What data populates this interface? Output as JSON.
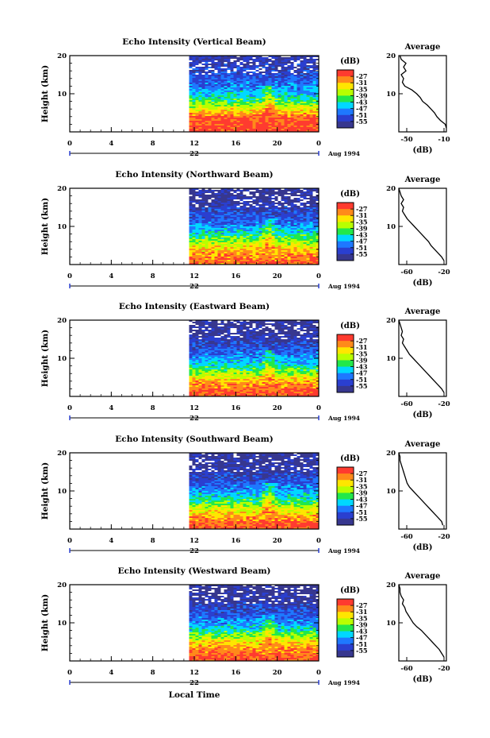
{
  "figure": {
    "xlabel": "Local Time",
    "time_ticks": [
      "0",
      "4",
      "8",
      "12",
      "16",
      "20",
      "0"
    ],
    "date_tick": "22",
    "date_label": "Aug 1994",
    "height_ticks": [
      "20",
      "10"
    ],
    "ylabel": "Height (km)",
    "colorbar_unit": "(dB)",
    "colorbar_ticks": [
      "-27",
      "-31",
      "-35",
      "-39",
      "-43",
      "-47",
      "-51",
      "-55"
    ],
    "colorbar_colors": [
      "#ff3b2f",
      "#ff8a1a",
      "#ffe600",
      "#b8ff00",
      "#22e84a",
      "#00d8ff",
      "#1e78ff",
      "#2a3fd0",
      "#37378f"
    ],
    "avg_title": "Average",
    "avg_xlabel": "(dB)"
  },
  "panels": [
    {
      "title": "Echo Intensity (Vertical Beam)",
      "avg_ticks": [
        "-50",
        "-10"
      ]
    },
    {
      "title": "Echo Intensity (Northward Beam)",
      "avg_ticks": [
        "-60",
        "-20"
      ]
    },
    {
      "title": "Echo Intensity (Eastward Beam)",
      "avg_ticks": [
        "-60",
        "-20"
      ]
    },
    {
      "title": "Echo Intensity (Southward Beam)",
      "avg_ticks": [
        "-60",
        "-20"
      ]
    },
    {
      "title": "Echo Intensity (Westward Beam)",
      "avg_ticks": [
        "-60",
        "-20"
      ]
    }
  ],
  "chart_data": [
    {
      "type": "heatmap",
      "title": "Echo Intensity (Vertical Beam)",
      "xlabel": "Local Time",
      "ylabel": "Height (km)",
      "colorbar_label": "(dB)",
      "x_range_hours": [
        0,
        24
      ],
      "data_start_hour": 11.5,
      "ylim_km": [
        0,
        20
      ],
      "colorbar_range": [
        -55,
        -27
      ],
      "typical_intensity_by_height": {
        "km": [
          1,
          2,
          4,
          6,
          8,
          10,
          12,
          14,
          16,
          18,
          20
        ],
        "dB": [
          -27,
          -27,
          -29,
          -35,
          -41,
          -45,
          -48,
          -50,
          -52,
          -53,
          -54
        ]
      }
    },
    {
      "type": "line",
      "title": "Average",
      "xlabel": "(dB)",
      "xlim": [
        -50,
        -10
      ],
      "ylim": [
        0,
        20
      ],
      "height_km": [
        1,
        2,
        3,
        4,
        5,
        6,
        7,
        8,
        9,
        10,
        11,
        12,
        13,
        14,
        15,
        16,
        17,
        18,
        19,
        20
      ],
      "values_dB": [
        -10,
        -11,
        -15,
        -18,
        -20,
        -23,
        -26,
        -30,
        -32,
        -35,
        -39,
        -45,
        -47,
        -46,
        -48,
        -44,
        -46,
        -44,
        -48,
        -49
      ]
    },
    {
      "type": "heatmap",
      "title": "Echo Intensity (Northward Beam)",
      "xlabel": "Local Time",
      "ylabel": "Height (km)",
      "colorbar_label": "(dB)",
      "x_range_hours": [
        0,
        24
      ],
      "data_start_hour": 11.5,
      "ylim_km": [
        0,
        20
      ],
      "colorbar_range": [
        -55,
        -27
      ],
      "typical_intensity_by_height": {
        "km": [
          1,
          2,
          4,
          6,
          8,
          10,
          12,
          14,
          16,
          18,
          20
        ],
        "dB": [
          -29,
          -30,
          -33,
          -38,
          -43,
          -47,
          -50,
          -52,
          -54,
          -55,
          -55
        ]
      }
    },
    {
      "type": "line",
      "title": "Average",
      "xlabel": "(dB)",
      "xlim": [
        -60,
        -20
      ],
      "ylim": [
        0,
        20
      ],
      "height_km": [
        1,
        2,
        3,
        4,
        5,
        6,
        7,
        8,
        9,
        10,
        11,
        12,
        13,
        14,
        15,
        16,
        17,
        18,
        19,
        20
      ],
      "values_dB": [
        -22,
        -24,
        -27,
        -30,
        -33,
        -35,
        -38,
        -41,
        -44,
        -47,
        -50,
        -53,
        -55,
        -57,
        -56,
        -58,
        -56,
        -58,
        -59,
        -60
      ]
    },
    {
      "type": "heatmap",
      "title": "Echo Intensity (Eastward Beam)",
      "xlabel": "Local Time",
      "ylabel": "Height (km)",
      "colorbar_label": "(dB)",
      "x_range_hours": [
        0,
        24
      ],
      "data_start_hour": 11.5,
      "ylim_km": [
        0,
        20
      ],
      "colorbar_range": [
        -55,
        -27
      ],
      "typical_intensity_by_height": {
        "km": [
          1,
          2,
          4,
          6,
          8,
          10,
          12,
          14,
          16,
          18,
          20
        ],
        "dB": [
          -28,
          -29,
          -32,
          -38,
          -43,
          -47,
          -50,
          -52,
          -54,
          -55,
          -55
        ]
      }
    },
    {
      "type": "line",
      "title": "Average",
      "xlabel": "(dB)",
      "xlim": [
        -60,
        -20
      ],
      "ylim": [
        0,
        20
      ],
      "height_km": [
        1,
        2,
        3,
        4,
        5,
        6,
        7,
        8,
        9,
        10,
        11,
        12,
        13,
        14,
        15,
        16,
        17,
        18,
        19,
        20
      ],
      "values_dB": [
        -22,
        -24,
        -27,
        -30,
        -33,
        -36,
        -39,
        -42,
        -45,
        -48,
        -51,
        -53,
        -55,
        -57,
        -56,
        -58,
        -57,
        -58,
        -59,
        -60
      ]
    },
    {
      "type": "heatmap",
      "title": "Echo Intensity (Southward Beam)",
      "xlabel": "Local Time",
      "ylabel": "Height (km)",
      "colorbar_label": "(dB)",
      "x_range_hours": [
        0,
        24
      ],
      "data_start_hour": 11.5,
      "ylim_km": [
        0,
        20
      ],
      "colorbar_range": [
        -55,
        -27
      ],
      "typical_intensity_by_height": {
        "km": [
          1,
          2,
          4,
          6,
          8,
          10,
          12,
          14,
          16,
          18,
          20
        ],
        "dB": [
          -28,
          -29,
          -33,
          -38,
          -43,
          -47,
          -50,
          -52,
          -54,
          -55,
          -55
        ]
      }
    },
    {
      "type": "line",
      "title": "Average",
      "xlabel": "(dB)",
      "xlim": [
        -60,
        -20
      ],
      "ylim": [
        0,
        20
      ],
      "height_km": [
        1,
        2,
        3,
        4,
        5,
        6,
        7,
        8,
        9,
        10,
        11,
        12,
        13,
        14,
        15,
        16,
        17,
        18,
        19,
        20
      ],
      "values_dB": [
        -23,
        -24,
        -27,
        -30,
        -33,
        -36,
        -39,
        -42,
        -45,
        -48,
        -51,
        -53,
        -54,
        -55,
        -56,
        -57,
        -58,
        -59,
        -59,
        -60
      ]
    },
    {
      "type": "heatmap",
      "title": "Echo Intensity (Westward Beam)",
      "xlabel": "Local Time",
      "ylabel": "Height (km)",
      "colorbar_label": "(dB)",
      "x_range_hours": [
        0,
        24
      ],
      "data_start_hour": 11.5,
      "ylim_km": [
        0,
        20
      ],
      "colorbar_range": [
        -55,
        -27
      ],
      "typical_intensity_by_height": {
        "km": [
          1,
          2,
          4,
          6,
          8,
          10,
          12,
          14,
          16,
          18,
          20
        ],
        "dB": [
          -28,
          -29,
          -32,
          -37,
          -43,
          -47,
          -50,
          -52,
          -54,
          -55,
          -55
        ]
      }
    },
    {
      "type": "line",
      "title": "Average",
      "xlabel": "(dB)",
      "xlim": [
        -60,
        -20
      ],
      "ylim": [
        0,
        20
      ],
      "height_km": [
        1,
        2,
        3,
        4,
        5,
        6,
        7,
        8,
        9,
        10,
        11,
        12,
        13,
        14,
        15,
        16,
        17,
        18,
        19,
        20
      ],
      "values_dB": [
        -22,
        -24,
        -26,
        -29,
        -32,
        -35,
        -38,
        -41,
        -45,
        -48,
        -50,
        -52,
        -54,
        -55,
        -57,
        -56,
        -58,
        -59,
        -59,
        -60
      ]
    }
  ]
}
